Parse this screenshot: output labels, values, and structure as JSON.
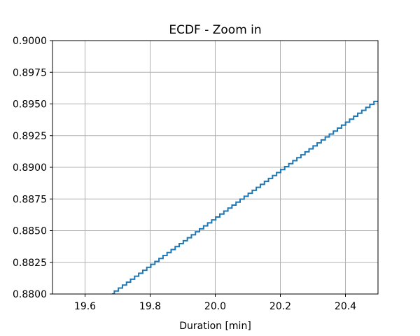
{
  "chart_data": {
    "type": "line",
    "title": "ECDF - Zoom in",
    "xlabel": "Duration [min]",
    "ylabel": "",
    "xlim": [
      19.5,
      20.5
    ],
    "ylim": [
      0.88,
      0.9
    ],
    "xticks": [
      19.6,
      19.8,
      20.0,
      20.2,
      20.4
    ],
    "xtick_labels": [
      "19.6",
      "19.8",
      "20.0",
      "20.2",
      "20.4"
    ],
    "yticks": [
      0.88,
      0.8825,
      0.885,
      0.8875,
      0.89,
      0.8925,
      0.895,
      0.8975,
      0.9
    ],
    "ytick_labels": [
      "0.8800",
      "0.8825",
      "0.8850",
      "0.8875",
      "0.8900",
      "0.8925",
      "0.8950",
      "0.8975",
      "0.9000"
    ],
    "grid": true,
    "line_color": "#1f77b4",
    "step_curve": {
      "x_start": 19.69,
      "x_end": 20.5,
      "y_start": 0.88,
      "y_end": 0.8952,
      "step_count": 65
    }
  }
}
